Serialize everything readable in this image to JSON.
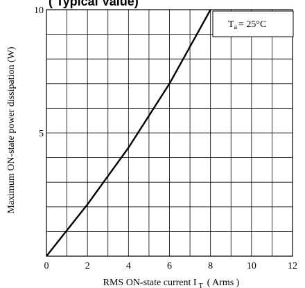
{
  "chart_data": {
    "type": "line",
    "title": "( Typical Value)",
    "xlabel": "RMS ON-state current I",
    "xlabel_sub": "T",
    "xlabel_unit": "( Arms )",
    "ylabel": "Maximum ON-state power dissipation (W)",
    "annotation": {
      "label": "T",
      "sub": "a",
      "value": "= 25°C"
    },
    "xlim": [
      0,
      12
    ],
    "ylim": [
      0,
      10
    ],
    "x_ticks": [
      0,
      2,
      4,
      6,
      8,
      10,
      12
    ],
    "y_ticks": [
      5,
      10
    ],
    "grid": true,
    "colors": {
      "line": "#000000",
      "grid": "#000000"
    },
    "series": [
      {
        "x": [
          0,
          1,
          2,
          3,
          4,
          5,
          6,
          7,
          8
        ],
        "y": [
          0,
          1.05,
          2.1,
          3.25,
          4.4,
          5.7,
          7.0,
          8.5,
          10.0
        ]
      }
    ]
  }
}
